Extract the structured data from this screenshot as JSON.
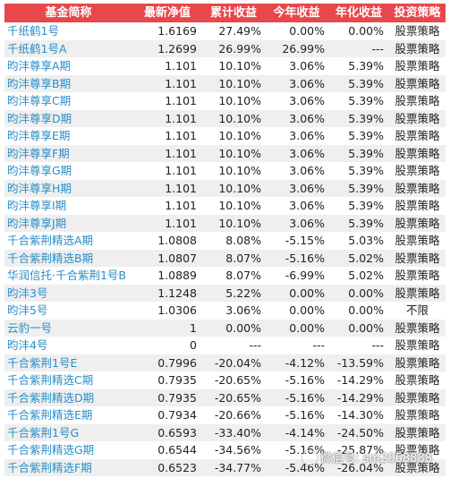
{
  "headers": [
    "基金简称",
    "最新净值",
    "累计收益",
    "今年收益",
    "年化收益",
    "投资策略"
  ],
  "rows": [
    [
      "千纸鹤1号",
      "1.6169",
      "27.49%",
      "0.00%",
      "0.00%",
      "股票策略"
    ],
    [
      "千纸鹤1号A",
      "1.2699",
      "26.99%",
      "26.99%",
      "---",
      "股票策略"
    ],
    [
      "昀沣尊享A期",
      "1.101",
      "10.10%",
      "3.06%",
      "5.39%",
      "股票策略"
    ],
    [
      "昀沣尊享B期",
      "1.101",
      "10.10%",
      "3.06%",
      "5.39%",
      "股票策略"
    ],
    [
      "昀沣尊享C期",
      "1.101",
      "10.10%",
      "3.06%",
      "5.39%",
      "股票策略"
    ],
    [
      "昀沣尊享D期",
      "1.101",
      "10.10%",
      "3.06%",
      "5.39%",
      "股票策略"
    ],
    [
      "昀沣尊享E期",
      "1.101",
      "10.10%",
      "3.06%",
      "5.39%",
      "股票策略"
    ],
    [
      "昀沣尊享F期",
      "1.101",
      "10.10%",
      "3.06%",
      "5.39%",
      "股票策略"
    ],
    [
      "昀沣尊享G期",
      "1.101",
      "10.10%",
      "3.06%",
      "5.39%",
      "股票策略"
    ],
    [
      "昀沣尊享H期",
      "1.101",
      "10.10%",
      "3.06%",
      "5.39%",
      "股票策略"
    ],
    [
      "昀沣尊享I期",
      "1.101",
      "10.10%",
      "3.06%",
      "5.39%",
      "股票策略"
    ],
    [
      "昀沣尊享J期",
      "1.101",
      "10.10%",
      "3.06%",
      "5.39%",
      "股票策略"
    ],
    [
      "千合紫荆精选A期",
      "1.0808",
      "8.08%",
      "-5.15%",
      "5.03%",
      "股票策略"
    ],
    [
      "千合紫荆精选B期",
      "1.0807",
      "8.07%",
      "-5.16%",
      "5.02%",
      "股票策略"
    ],
    [
      "华润信托·千合紫荆1号B",
      "1.0889",
      "8.07%",
      "-6.99%",
      "5.02%",
      "股票策略"
    ],
    [
      "昀沣3号",
      "1.1248",
      "5.22%",
      "0.00%",
      "0.00%",
      "股票策略"
    ],
    [
      "昀沣5号",
      "1.0306",
      "3.06%",
      "0.00%",
      "0.00%",
      "不限"
    ],
    [
      "云豹一号",
      "1",
      "0.00%",
      "0.00%",
      "0.00%",
      "股票策略"
    ],
    [
      "昀沣4号",
      "0",
      "---",
      "---",
      "---",
      "股票策略"
    ],
    [
      "千合紫荆1号E",
      "0.7996",
      "-20.04%",
      "-4.12%",
      "-13.59%",
      "股票策略"
    ],
    [
      "千合紫荆精选C期",
      "0.7935",
      "-20.65%",
      "-5.16%",
      "-14.29%",
      "股票策略"
    ],
    [
      "千合紫荆精选D期",
      "0.7935",
      "-20.65%",
      "-5.16%",
      "-14.29%",
      "股票策略"
    ],
    [
      "千合紫荆精选E期",
      "0.7934",
      "-20.66%",
      "-5.16%",
      "-14.30%",
      "股票策略"
    ],
    [
      "千合紫荆1号G",
      "0.6593",
      "-33.40%",
      "-4.14%",
      "-24.50%",
      "股票策略"
    ],
    [
      "千合紫荆精选G期",
      "0.6544",
      "-34.56%",
      "-5.16%",
      "-25.87%",
      "股票策略"
    ],
    [
      "千合紫荆精选F期",
      "0.6523",
      "-34.77%",
      "-5.46%",
      "-26.04%",
      "股票策略"
    ]
  ],
  "watermark": "微信号: sm2058888",
  "colors": {
    "header_bg": "#e8474b",
    "name_text": "#2a8fc8",
    "alt_row_bg": "#efefef"
  }
}
